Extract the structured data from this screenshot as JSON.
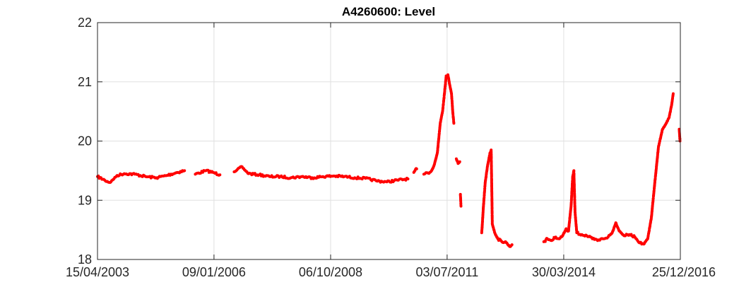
{
  "chart_data": {
    "type": "scatter",
    "title": "A4260600: Level",
    "xlabel": "",
    "ylabel": "",
    "x_is_date": true,
    "xlim": [
      "2003-04-15",
      "2016-12-25"
    ],
    "ylim": [
      18,
      22
    ],
    "x_ticks": [
      {
        "date": "2003-04-15",
        "label": "15/04/2003"
      },
      {
        "date": "2006-01-09",
        "label": "09/01/2006"
      },
      {
        "date": "2008-10-06",
        "label": "06/10/2008"
      },
      {
        "date": "2011-07-03",
        "label": "03/07/2011"
      },
      {
        "date": "2014-03-30",
        "label": "30/03/2014"
      },
      {
        "date": "2016-12-25",
        "label": "25/12/2016"
      }
    ],
    "y_ticks": [
      18,
      19,
      20,
      21,
      22
    ],
    "grid": true,
    "marker_color": "#ff0000",
    "series": [
      {
        "segments": [
          [
            [
              "2003-04-15",
              19.4
            ],
            [
              "2003-06-15",
              19.34
            ],
            [
              "2003-08-01",
              19.3
            ],
            [
              "2003-10-01",
              19.42
            ],
            [
              "2003-12-01",
              19.45
            ],
            [
              "2004-03-01",
              19.44
            ],
            [
              "2004-06-01",
              19.4
            ],
            [
              "2004-09-01",
              19.38
            ],
            [
              "2004-12-01",
              19.42
            ],
            [
              "2005-03-01",
              19.47
            ],
            [
              "2005-05-01",
              19.5
            ]
          ],
          [
            [
              "2005-08-01",
              19.44
            ],
            [
              "2005-11-01",
              19.5
            ],
            [
              "2006-01-01",
              19.47
            ],
            [
              "2006-03-01",
              19.43
            ]
          ],
          [
            [
              "2006-07-01",
              19.48
            ],
            [
              "2006-09-01",
              19.57
            ],
            [
              "2006-11-01",
              19.45
            ],
            [
              "2007-02-01",
              19.43
            ],
            [
              "2007-05-01",
              19.4
            ],
            [
              "2007-08-01",
              19.4
            ],
            [
              "2007-11-01",
              19.38
            ],
            [
              "2008-02-01",
              19.4
            ],
            [
              "2008-05-01",
              19.38
            ],
            [
              "2008-08-01",
              19.4
            ],
            [
              "2008-11-01",
              19.41
            ],
            [
              "2009-02-01",
              19.4
            ],
            [
              "2009-05-01",
              19.38
            ],
            [
              "2009-08-01",
              19.37
            ],
            [
              "2009-11-01",
              19.33
            ],
            [
              "2010-02-01",
              19.31
            ],
            [
              "2010-05-01",
              19.34
            ],
            [
              "2010-08-01",
              19.36
            ]
          ],
          [
            [
              "2010-09-20",
              19.47
            ],
            [
              "2010-10-15",
              19.53
            ]
          ],
          [
            [
              "2010-12-15",
              19.44
            ],
            [
              "2011-01-20",
              19.46
            ],
            [
              "2011-02-20",
              19.5
            ],
            [
              "2011-03-15",
              19.6
            ],
            [
              "2011-04-10",
              19.8
            ],
            [
              "2011-05-05",
              20.3
            ],
            [
              "2011-05-25",
              20.5
            ],
            [
              "2011-06-10",
              20.8
            ],
            [
              "2011-06-25",
              21.1
            ],
            [
              "2011-07-10",
              21.12
            ],
            [
              "2011-07-25",
              20.95
            ],
            [
              "2011-08-10",
              20.8
            ],
            [
              "2011-08-20",
              20.5
            ],
            [
              "2011-08-30",
              20.3
            ]
          ],
          [
            [
              "2011-09-20",
              19.7
            ],
            [
              "2011-10-05",
              19.62
            ],
            [
              "2011-10-20",
              19.65
            ]
          ],
          [
            [
              "2011-10-25",
              19.1
            ],
            [
              "2011-10-30",
              18.9
            ]
          ],
          [
            [
              "2012-04-25",
              18.45
            ],
            [
              "2012-05-10",
              18.9
            ],
            [
              "2012-05-25",
              19.3
            ],
            [
              "2012-06-15",
              19.6
            ],
            [
              "2012-07-05",
              19.8
            ],
            [
              "2012-07-15",
              19.85
            ],
            [
              "2012-07-25",
              18.6
            ],
            [
              "2012-08-15",
              18.45
            ],
            [
              "2012-09-10",
              18.35
            ],
            [
              "2012-10-15",
              18.3
            ],
            [
              "2012-11-15",
              18.3
            ],
            [
              "2012-12-20",
              18.22
            ],
            [
              "2013-01-10",
              18.25
            ]
          ],
          [
            [
              "2013-10-10",
              18.3
            ],
            [
              "2013-11-10",
              18.35
            ],
            [
              "2013-12-15",
              18.32
            ],
            [
              "2014-01-20",
              18.38
            ],
            [
              "2014-02-20",
              18.35
            ],
            [
              "2014-03-20",
              18.4
            ],
            [
              "2014-04-20",
              18.52
            ],
            [
              "2014-05-10",
              18.48
            ],
            [
              "2014-06-01",
              18.9
            ],
            [
              "2014-06-15",
              19.4
            ],
            [
              "2014-06-25",
              19.5
            ],
            [
              "2014-07-05",
              18.8
            ],
            [
              "2014-07-20",
              18.45
            ],
            [
              "2014-09-01",
              18.42
            ],
            [
              "2014-10-15",
              18.4
            ],
            [
              "2014-12-01",
              18.35
            ],
            [
              "2015-01-15",
              18.32
            ],
            [
              "2015-03-01",
              18.35
            ],
            [
              "2015-04-15",
              18.38
            ],
            [
              "2015-05-20",
              18.45
            ],
            [
              "2015-06-20",
              18.62
            ],
            [
              "2015-07-20",
              18.48
            ],
            [
              "2015-09-01",
              18.4
            ],
            [
              "2015-10-15",
              18.42
            ],
            [
              "2015-12-01",
              18.38
            ],
            [
              "2016-01-10",
              18.28
            ],
            [
              "2016-02-15",
              18.26
            ],
            [
              "2016-03-20",
              18.35
            ],
            [
              "2016-04-20",
              18.7
            ],
            [
              "2016-05-20",
              19.3
            ],
            [
              "2016-06-20",
              19.9
            ],
            [
              "2016-07-25",
              20.2
            ],
            [
              "2016-08-25",
              20.3
            ],
            [
              "2016-09-20",
              20.4
            ],
            [
              "2016-10-10",
              20.6
            ],
            [
              "2016-10-25",
              20.8
            ]
          ],
          [
            [
              "2016-12-15",
              20.2
            ],
            [
              "2016-12-22",
              20.0
            ]
          ]
        ]
      }
    ]
  }
}
